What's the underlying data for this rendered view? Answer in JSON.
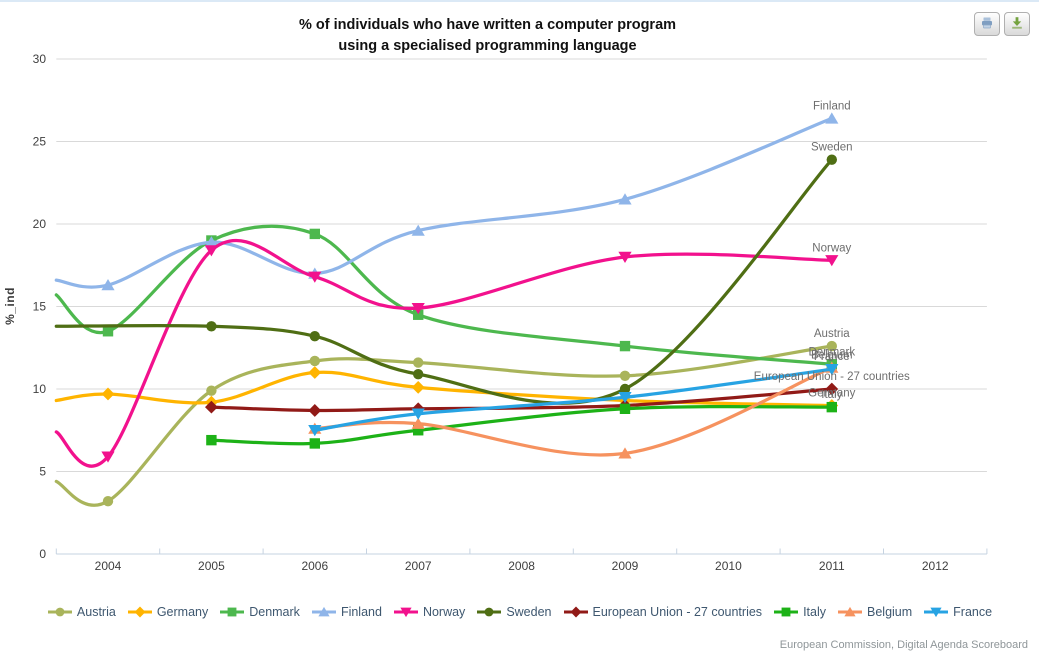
{
  "page": {
    "title_line1": "% of individuals who have written a computer program",
    "title_line2": "using a specialised programming language",
    "credit": "European Commission, Digital Agenda Scoreboard"
  },
  "toolbar": {
    "buttons": [
      {
        "name": "print-chart-button",
        "icon": "printer-icon"
      },
      {
        "name": "download-chart-button",
        "icon": "download-icon"
      }
    ]
  },
  "chart_data": {
    "type": "line",
    "title": "% of individuals who have written a computer program using a specialised programming language",
    "xlabel": "",
    "ylabel": "%_ind",
    "ylim": [
      0,
      30
    ],
    "y_ticks": [
      0,
      5,
      10,
      15,
      20,
      25,
      30
    ],
    "x_ticks": [
      2004,
      2005,
      2006,
      2007,
      2008,
      2009,
      2010,
      2011,
      2012
    ],
    "x_range_shown": [
      2003.5,
      2012.5
    ],
    "grid": "horizontal",
    "legend_position": "bottom",
    "end_labels": true,
    "series": [
      {
        "name": "Austria",
        "color": "#A9B45B",
        "marker": "circle",
        "edge_value": 4.4,
        "years": [
          2004,
          2005,
          2006,
          2007,
          2009,
          2011
        ],
        "values": [
          3.2,
          9.9,
          11.7,
          11.6,
          10.8,
          12.6
        ]
      },
      {
        "name": "Germany",
        "color": "#FFB400",
        "marker": "diamond",
        "edge_value": 9.3,
        "years": [
          2004,
          2005,
          2006,
          2007,
          2009,
          2011
        ],
        "values": [
          9.7,
          9.2,
          11.0,
          10.1,
          9.3,
          9.0
        ]
      },
      {
        "name": "Denmark",
        "color": "#4DB84E",
        "marker": "square",
        "edge_value": 15.7,
        "years": [
          2004,
          2005,
          2006,
          2007,
          2009,
          2011
        ],
        "values": [
          13.5,
          19.0,
          19.4,
          14.5,
          12.6,
          11.5
        ]
      },
      {
        "name": "Finland",
        "color": "#8FB5E9",
        "marker": "triangle-up",
        "edge_value": 16.6,
        "years": [
          2004,
          2005,
          2006,
          2007,
          2009,
          2011
        ],
        "values": [
          16.3,
          18.9,
          17.0,
          19.6,
          21.5,
          26.4
        ]
      },
      {
        "name": "Norway",
        "color": "#F2118D",
        "marker": "triangle-down",
        "edge_value": 7.4,
        "years": [
          2004,
          2005,
          2006,
          2007,
          2009,
          2011
        ],
        "values": [
          5.9,
          18.4,
          16.8,
          14.9,
          18.0,
          17.8
        ]
      },
      {
        "name": "Sweden",
        "color": "#4F6E14",
        "marker": "circle",
        "edge_value": 13.8,
        "years": [
          2005,
          2006,
          2007,
          2009,
          2011
        ],
        "values": [
          13.8,
          13.2,
          10.9,
          10.0,
          23.9
        ]
      },
      {
        "name": "European Union - 27 countries",
        "color": "#911A17",
        "marker": "diamond",
        "edge_value": null,
        "years": [
          2005,
          2006,
          2007,
          2009,
          2011
        ],
        "values": [
          8.9,
          8.7,
          8.8,
          9.0,
          10.0
        ]
      },
      {
        "name": "Italy",
        "color": "#1DB217",
        "marker": "square",
        "edge_value": null,
        "years": [
          2005,
          2006,
          2007,
          2009,
          2011
        ],
        "values": [
          6.9,
          6.7,
          7.5,
          8.8,
          8.9
        ]
      },
      {
        "name": "Belgium",
        "color": "#F6925F",
        "marker": "triangle-up",
        "edge_value": null,
        "years": [
          2006,
          2007,
          2009,
          2011
        ],
        "values": [
          7.6,
          7.9,
          6.1,
          11.3
        ]
      },
      {
        "name": "France",
        "color": "#27A3E3",
        "marker": "triangle-down",
        "edge_value": null,
        "years": [
          2006,
          2007,
          2009,
          2011
        ],
        "values": [
          7.5,
          8.5,
          9.5,
          11.2
        ]
      }
    ]
  },
  "style": {
    "grid_color": "#D9D9D9",
    "axis_line_color": "#C6D3E1",
    "axis_label_color": "#3F3F3F",
    "data_label_color": "#6E6E6E",
    "legend_text_color": "#3E576F"
  }
}
